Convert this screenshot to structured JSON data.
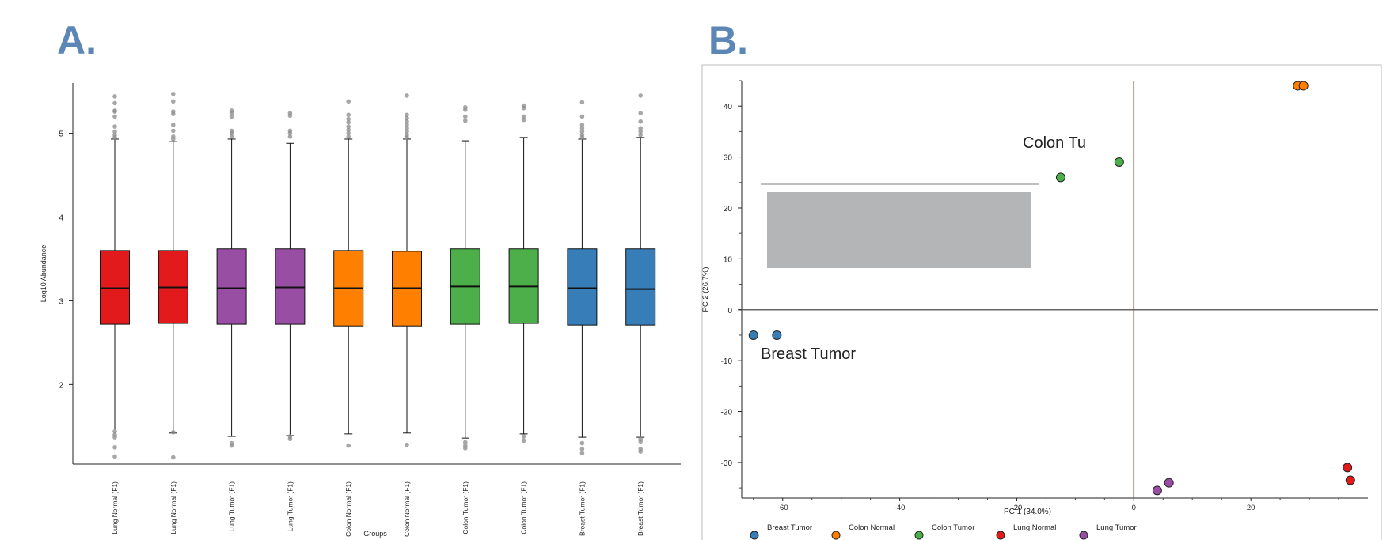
{
  "panels": {
    "a_letter": "A.",
    "b_letter": "B."
  },
  "chart_data": [
    {
      "type": "box",
      "ylabel": "Log10 Abundance",
      "xlabel": "Groups",
      "ylim": [
        1.05,
        5.6
      ],
      "yticks": [
        2,
        3,
        4,
        5
      ],
      "colors": {
        "Lung Normal": "#e31a1c",
        "Lung Tumor": "#984ea3",
        "Colon Normal": "#ff7f00",
        "Colon Tumor": "#4daf4a",
        "Breast Tumor": "#377eb8"
      },
      "boxes": [
        {
          "label": "Lung Normal (F1)",
          "group": "Lung Normal",
          "q1": 2.72,
          "median": 3.15,
          "q3": 3.6,
          "wlow": 1.47,
          "whigh": 4.93,
          "outliers": [
            1.14,
            1.25,
            1.37,
            1.4,
            1.44,
            4.95,
            4.98,
            5.02,
            5.08,
            5.2,
            5.26,
            5.27,
            5.36,
            5.44
          ]
        },
        {
          "label": "Lung Normal (F1)",
          "group": "Lung Normal",
          "q1": 2.73,
          "median": 3.16,
          "q3": 3.6,
          "wlow": 1.42,
          "whigh": 4.9,
          "outliers": [
            1.13,
            1.43,
            4.93,
            4.96,
            5.03,
            5.1,
            5.23,
            5.26,
            5.38,
            5.47
          ]
        },
        {
          "label": "Lung Tumor (F1)",
          "group": "Lung Tumor",
          "q1": 2.72,
          "median": 3.15,
          "q3": 3.62,
          "wlow": 1.38,
          "whigh": 4.93,
          "outliers": [
            1.27,
            1.3,
            4.96,
            5.0,
            5.03,
            5.2,
            5.24,
            5.27
          ]
        },
        {
          "label": "Lung Tumor (F1)",
          "group": "Lung Tumor",
          "q1": 2.72,
          "median": 3.16,
          "q3": 3.62,
          "wlow": 1.39,
          "whigh": 4.88,
          "outliers": [
            1.35,
            1.38,
            4.96,
            5.0,
            5.03,
            5.21,
            5.24
          ]
        },
        {
          "label": "Colon Normal (F1)",
          "group": "Colon Normal",
          "q1": 2.7,
          "median": 3.15,
          "q3": 3.6,
          "wlow": 1.41,
          "whigh": 4.93,
          "outliers": [
            1.27,
            4.96,
            5.0,
            5.04,
            5.08,
            5.13,
            5.17,
            5.22,
            5.38
          ]
        },
        {
          "label": "Colon Normal (F1)",
          "group": "Colon Normal",
          "q1": 2.7,
          "median": 3.15,
          "q3": 3.59,
          "wlow": 1.42,
          "whigh": 4.93,
          "outliers": [
            1.28,
            4.95,
            4.98,
            5.02,
            5.06,
            5.1,
            5.14,
            5.18,
            5.22,
            5.45
          ]
        },
        {
          "label": "Colon Tumor (F1)",
          "group": "Colon Tumor",
          "q1": 2.72,
          "median": 3.17,
          "q3": 3.62,
          "wlow": 1.36,
          "whigh": 4.91,
          "outliers": [
            1.24,
            1.27,
            1.31,
            5.15,
            5.2,
            5.28,
            5.31
          ]
        },
        {
          "label": "Colon Tumor (F1)",
          "group": "Colon Tumor",
          "q1": 2.73,
          "median": 3.17,
          "q3": 3.62,
          "wlow": 1.41,
          "whigh": 4.95,
          "outliers": [
            1.33,
            1.38,
            5.16,
            5.2,
            5.3,
            5.33
          ]
        },
        {
          "label": "Breast Tumor (F1)",
          "group": "Breast Tumor",
          "q1": 2.71,
          "median": 3.15,
          "q3": 3.62,
          "wlow": 1.37,
          "whigh": 4.93,
          "outliers": [
            1.18,
            1.23,
            1.3,
            4.95,
            4.98,
            5.02,
            5.06,
            5.1,
            5.2,
            5.37
          ]
        },
        {
          "label": "Breast Tumor (F1)",
          "group": "Breast Tumor",
          "q1": 2.71,
          "median": 3.14,
          "q3": 3.62,
          "wlow": 1.37,
          "whigh": 4.95,
          "outliers": [
            1.2,
            1.23,
            1.32,
            1.35,
            4.98,
            5.02,
            5.06,
            5.14,
            5.24,
            5.45
          ]
        }
      ]
    },
    {
      "type": "scatter",
      "xlabel": "PC 1 (34.0%)",
      "ylabel": "PC 2 (26.7%)",
      "xlim": [
        -67,
        40
      ],
      "ylim": [
        -37,
        45
      ],
      "xticks": [
        -60,
        -40,
        -20,
        0,
        20
      ],
      "yticks": [
        40,
        30,
        20,
        10,
        0,
        -10,
        -20,
        -30
      ],
      "series": [
        {
          "name": "Breast Tumor",
          "color": "#377eb8",
          "points": [
            [
              -65,
              -5
            ],
            [
              -61,
              -5
            ]
          ]
        },
        {
          "name": "Colon Normal",
          "color": "#ff7f00",
          "points": [
            [
              28,
              44
            ],
            [
              29,
              44
            ]
          ]
        },
        {
          "name": "Colon Tumor",
          "color": "#4daf4a",
          "points": [
            [
              -12.5,
              26
            ],
            [
              -2.5,
              29
            ]
          ]
        },
        {
          "name": "Lung Normal",
          "color": "#e31a1c",
          "points": [
            [
              36.5,
              -31
            ],
            [
              37,
              -33.5
            ]
          ]
        },
        {
          "name": "Lung Tumor",
          "color": "#984ea3",
          "points": [
            [
              4,
              -35.5
            ],
            [
              6,
              -34
            ]
          ]
        }
      ],
      "annotations": [
        "Colon Tu",
        "Breast Tumor"
      ]
    }
  ]
}
